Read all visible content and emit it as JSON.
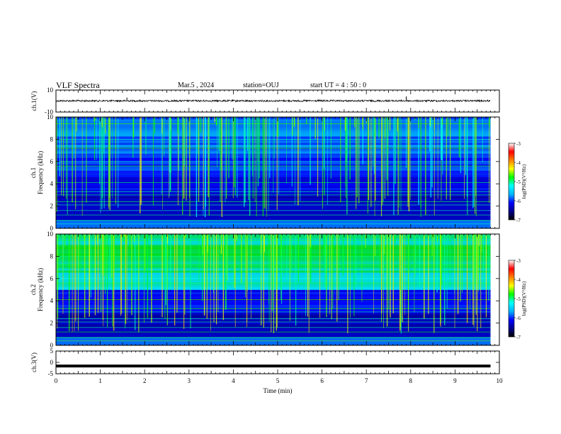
{
  "header": {
    "title": "VLF Spectra",
    "date": "Mar.5 , 2024",
    "station": "station=OUJ",
    "start": "start  UT =  4 : 50 : 0"
  },
  "chart_data": [
    {
      "type": "line",
      "panel": "ch1-waveform",
      "ylabel": "ch.1(V)",
      "ylim": [
        -10,
        10
      ],
      "yticks": [
        "10",
        "-10"
      ],
      "xlim": [
        0,
        10
      ],
      "series": [
        {
          "x_range": [
            0,
            9.8
          ],
          "baseline": 0.2,
          "noise_amplitude": 0.8,
          "spikes": [
            [
              1.6,
              3
            ],
            [
              7.9,
              4
            ]
          ]
        }
      ]
    },
    {
      "type": "heatmap",
      "panel": "ch1-spectrogram",
      "ylabel": "ch.1 Frequency (kHz)",
      "ylim": [
        0,
        10
      ],
      "yticks": [
        "0",
        "2",
        "4",
        "6",
        "8",
        "10"
      ],
      "xlim": [
        0,
        10
      ],
      "data_x_range": [
        0,
        9.8
      ],
      "colorbar": {
        "label": "log(PSD)(V²/Hz)",
        "range": [
          -7,
          -3
        ],
        "ticks": [
          "-3",
          "-4",
          "-5",
          "-6",
          "-7"
        ]
      }
    },
    {
      "type": "heatmap",
      "panel": "ch2-spectrogram",
      "ylabel": "ch.2 Frequency (kHz)",
      "ylim": [
        0,
        10
      ],
      "yticks": [
        "0",
        "2",
        "4",
        "6",
        "8",
        "10"
      ],
      "xlim": [
        0,
        10
      ],
      "data_x_range": [
        0,
        9.8
      ],
      "colorbar": {
        "label": "log(PSD)(V²/Hz)",
        "range": [
          -7,
          -3
        ],
        "ticks": [
          "-3",
          "-4",
          "-5",
          "-6",
          "-7"
        ]
      }
    },
    {
      "type": "line",
      "panel": "ch3-waveform",
      "ylabel": "ch.3(V)",
      "ylim": [
        -5,
        5
      ],
      "yticks": [
        "5",
        "0",
        "-5"
      ],
      "xlim": [
        0,
        10
      ],
      "series": [
        {
          "x_range": [
            0,
            9.8
          ],
          "value": -1.6
        }
      ]
    }
  ],
  "x_axis": {
    "label": "Time  (min)",
    "ticks": [
      "0",
      "1",
      "2",
      "3",
      "4",
      "5",
      "6",
      "7",
      "8",
      "9",
      "10"
    ]
  },
  "colors": {
    "colormap": [
      "#000000",
      "#00008b",
      "#0000ff",
      "#00b4ff",
      "#00ffff",
      "#00ff00",
      "#ffff00",
      "#ff8000",
      "#ff0000",
      "#ffffff"
    ]
  }
}
